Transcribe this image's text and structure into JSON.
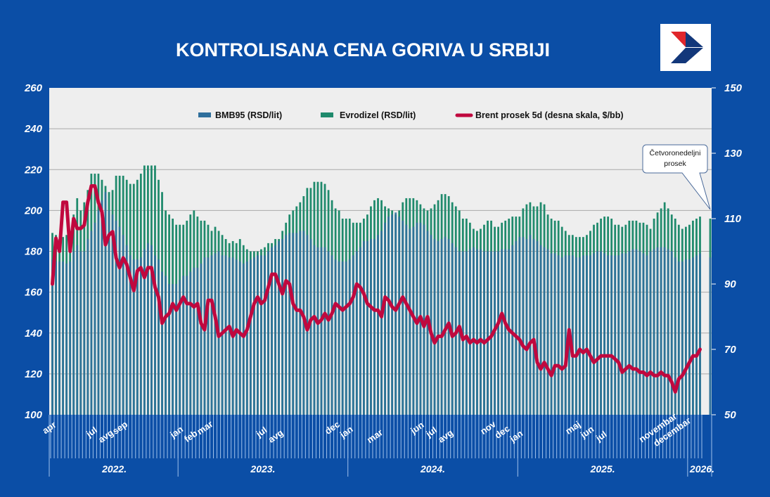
{
  "chart_data": {
    "type": "bar",
    "title": "KONTROLISANA CENA GORIVA U SRBIJI",
    "legend_position": "top",
    "grid": true,
    "ylim_left": [
      100,
      260
    ],
    "yticks_left": [
      "260",
      "240",
      "220",
      "200",
      "180",
      "160",
      "140",
      "120",
      "100"
    ],
    "ylim_right": [
      50,
      150
    ],
    "yticks_right": [
      "150",
      "130",
      "110",
      "90",
      "70",
      "50"
    ],
    "colors": {
      "bmb95": "#2f6f9c",
      "evrodizel": "#1f8a6c",
      "brent": "#c0083e",
      "background": "#0b4ea6",
      "plot": "#eeeeee"
    },
    "series": [
      {
        "name": "BMB95 (RSD/lit)",
        "kind": "bar",
        "axis": "left",
        "values": [
          176,
          175,
          175,
          175,
          174,
          175,
          180,
          183,
          180,
          180,
          186,
          190,
          194,
          200,
          205,
          209,
          200,
          198,
          195,
          192,
          188,
          183,
          178,
          176,
          176,
          177,
          181,
          184,
          183,
          178,
          176,
          170,
          168,
          164,
          164,
          164,
          166,
          168,
          168,
          170,
          172,
          172,
          174,
          177,
          177,
          178,
          179,
          180,
          178,
          178,
          177,
          177,
          176,
          175,
          174,
          175,
          176,
          177,
          178,
          178,
          178,
          180,
          182,
          183,
          185,
          186,
          188,
          189,
          189,
          189,
          190,
          190,
          188,
          186,
          183,
          182,
          182,
          182,
          180,
          178,
          176,
          175,
          175,
          175,
          176,
          178,
          180,
          182,
          185,
          185,
          186,
          186,
          188,
          190,
          194,
          197,
          198,
          199,
          197,
          195,
          193,
          191,
          192,
          194,
          194,
          193,
          190,
          188,
          186,
          185,
          186,
          187,
          186,
          184,
          182,
          180,
          180,
          180,
          181,
          182,
          181,
          181,
          180,
          180,
          180,
          180,
          180,
          181,
          181,
          181,
          183,
          185,
          187,
          187,
          186,
          188,
          186,
          185,
          183,
          182,
          181,
          179,
          179,
          178,
          177,
          178,
          178,
          178,
          177,
          177,
          178,
          178,
          178,
          179,
          180,
          180,
          179,
          178,
          178,
          178,
          178,
          179,
          179,
          180,
          181,
          181,
          180,
          179,
          178,
          180,
          181,
          182,
          182,
          182,
          181,
          180,
          177,
          175,
          175,
          176,
          176,
          177,
          178,
          179
        ]
      },
      {
        "name": "Evrodizel (RSD/lit)",
        "kind": "bar",
        "axis": "left",
        "values": [
          189,
          188,
          186,
          187,
          188,
          190,
          198,
          206,
          200,
          204,
          210,
          218,
          218,
          218,
          215,
          212,
          209,
          210,
          217,
          217,
          217,
          215,
          213,
          213,
          215,
          218,
          222,
          222,
          222,
          222,
          215,
          209,
          200,
          198,
          196,
          193,
          193,
          193,
          195,
          198,
          200,
          197,
          195,
          195,
          193,
          190,
          192,
          190,
          188,
          186,
          184,
          185,
          184,
          186,
          183,
          181,
          180,
          180,
          180,
          181,
          182,
          184,
          184,
          186,
          186,
          190,
          194,
          198,
          200,
          202,
          204,
          207,
          211,
          211,
          214,
          214,
          214,
          213,
          210,
          205,
          201,
          200,
          196,
          196,
          196,
          194,
          194,
          194,
          196,
          198,
          202,
          205,
          206,
          205,
          202,
          201,
          200,
          198,
          200,
          204,
          206,
          206,
          206,
          205,
          203,
          201,
          200,
          201,
          203,
          205,
          208,
          208,
          207,
          204,
          202,
          200,
          196,
          196,
          194,
          191,
          190,
          191,
          193,
          195,
          195,
          192,
          192,
          194,
          195,
          196,
          197,
          197,
          197,
          201,
          203,
          204,
          202,
          202,
          204,
          203,
          198,
          196,
          195,
          195,
          192,
          190,
          188,
          188,
          187,
          187,
          187,
          188,
          190,
          193,
          194,
          196,
          197,
          197,
          196,
          193,
          193,
          192,
          193,
          195,
          195,
          195,
          194,
          194,
          193,
          191,
          196,
          199,
          201,
          204,
          201,
          198,
          196,
          193,
          191,
          192,
          193,
          195,
          196,
          197
        ]
      },
      {
        "name": "Brent prosek  5d (desna skala, $/bb)",
        "kind": "line",
        "axis": "right",
        "values": [
          90,
          104,
          100,
          115,
          115,
          100,
          110,
          107,
          107,
          108,
          115,
          120,
          120,
          115,
          112,
          102,
          105,
          106,
          98,
          95,
          98,
          96,
          92,
          88,
          94,
          95,
          92,
          95,
          95,
          89,
          86,
          78,
          80,
          81,
          84,
          82,
          84,
          86,
          84,
          84,
          83,
          84,
          78,
          76,
          85,
          85,
          80,
          74,
          75,
          76,
          77,
          74,
          76,
          75,
          74,
          76,
          80,
          84,
          86,
          84,
          85,
          89,
          93,
          93,
          90,
          87,
          91,
          90,
          84,
          82,
          82,
          80,
          76,
          79,
          80,
          78,
          79,
          81,
          79,
          81,
          84,
          83,
          82,
          83,
          84,
          86,
          90,
          89,
          87,
          84,
          83,
          82,
          82,
          80,
          86,
          85,
          83,
          82,
          84,
          86,
          84,
          82,
          80,
          78,
          80,
          77,
          80,
          75,
          72,
          74,
          74,
          76,
          78,
          74,
          75,
          77,
          73,
          74,
          72,
          73,
          72,
          73,
          72,
          73,
          74,
          76,
          78,
          81,
          78,
          76,
          75,
          74,
          73,
          71,
          70,
          72,
          73,
          66,
          64,
          66,
          64,
          62,
          65,
          65,
          64,
          65,
          76,
          68,
          68,
          70,
          69,
          70,
          68,
          66,
          67,
          68,
          68,
          68,
          68,
          67,
          66,
          63,
          64,
          65,
          64,
          64,
          63,
          63,
          62,
          63,
          62,
          62,
          63,
          62,
          62,
          60,
          57,
          61,
          62,
          64,
          66,
          68,
          68,
          70
        ]
      }
    ],
    "four_week_average": {
      "label": "Četvoronedeljni prosek",
      "bmb95": 177,
      "evrodizel": 196
    },
    "month_labels": [
      {
        "label": "apr",
        "index": 0
      },
      {
        "label": "jul",
        "index": 12
      },
      {
        "label": "avg",
        "index": 16
      },
      {
        "label": "sep",
        "index": 20
      },
      {
        "label": "jan",
        "index": 36
      },
      {
        "label": "feb",
        "index": 40
      },
      {
        "label": "mar",
        "index": 44
      },
      {
        "label": "jul",
        "index": 60
      },
      {
        "label": "avg",
        "index": 64
      },
      {
        "label": "dec",
        "index": 80
      },
      {
        "label": "jan",
        "index": 84
      },
      {
        "label": "mar",
        "index": 92
      },
      {
        "label": "jun",
        "index": 104
      },
      {
        "label": "jul",
        "index": 108
      },
      {
        "label": "avg",
        "index": 112
      },
      {
        "label": "nov",
        "index": 124
      },
      {
        "label": "dec",
        "index": 128
      },
      {
        "label": "jan",
        "index": 132
      },
      {
        "label": "maj",
        "index": 148
      },
      {
        "label": "jun",
        "index": 152
      },
      {
        "label": "jul",
        "index": 156
      },
      {
        "label": "novembar",
        "index": 172
      },
      {
        "label": "decembar",
        "index": 176
      }
    ],
    "years": [
      {
        "label": "2022.",
        "start": 0,
        "end": 35
      },
      {
        "label": "2023.",
        "start": 36,
        "end": 83
      },
      {
        "label": "2024.",
        "start": 84,
        "end": 131
      },
      {
        "label": "2025.",
        "start": 132,
        "end": 179
      },
      {
        "label": "2026.",
        "start": 180,
        "end": 184
      }
    ]
  },
  "logo": {
    "name": "arrow-logo"
  }
}
